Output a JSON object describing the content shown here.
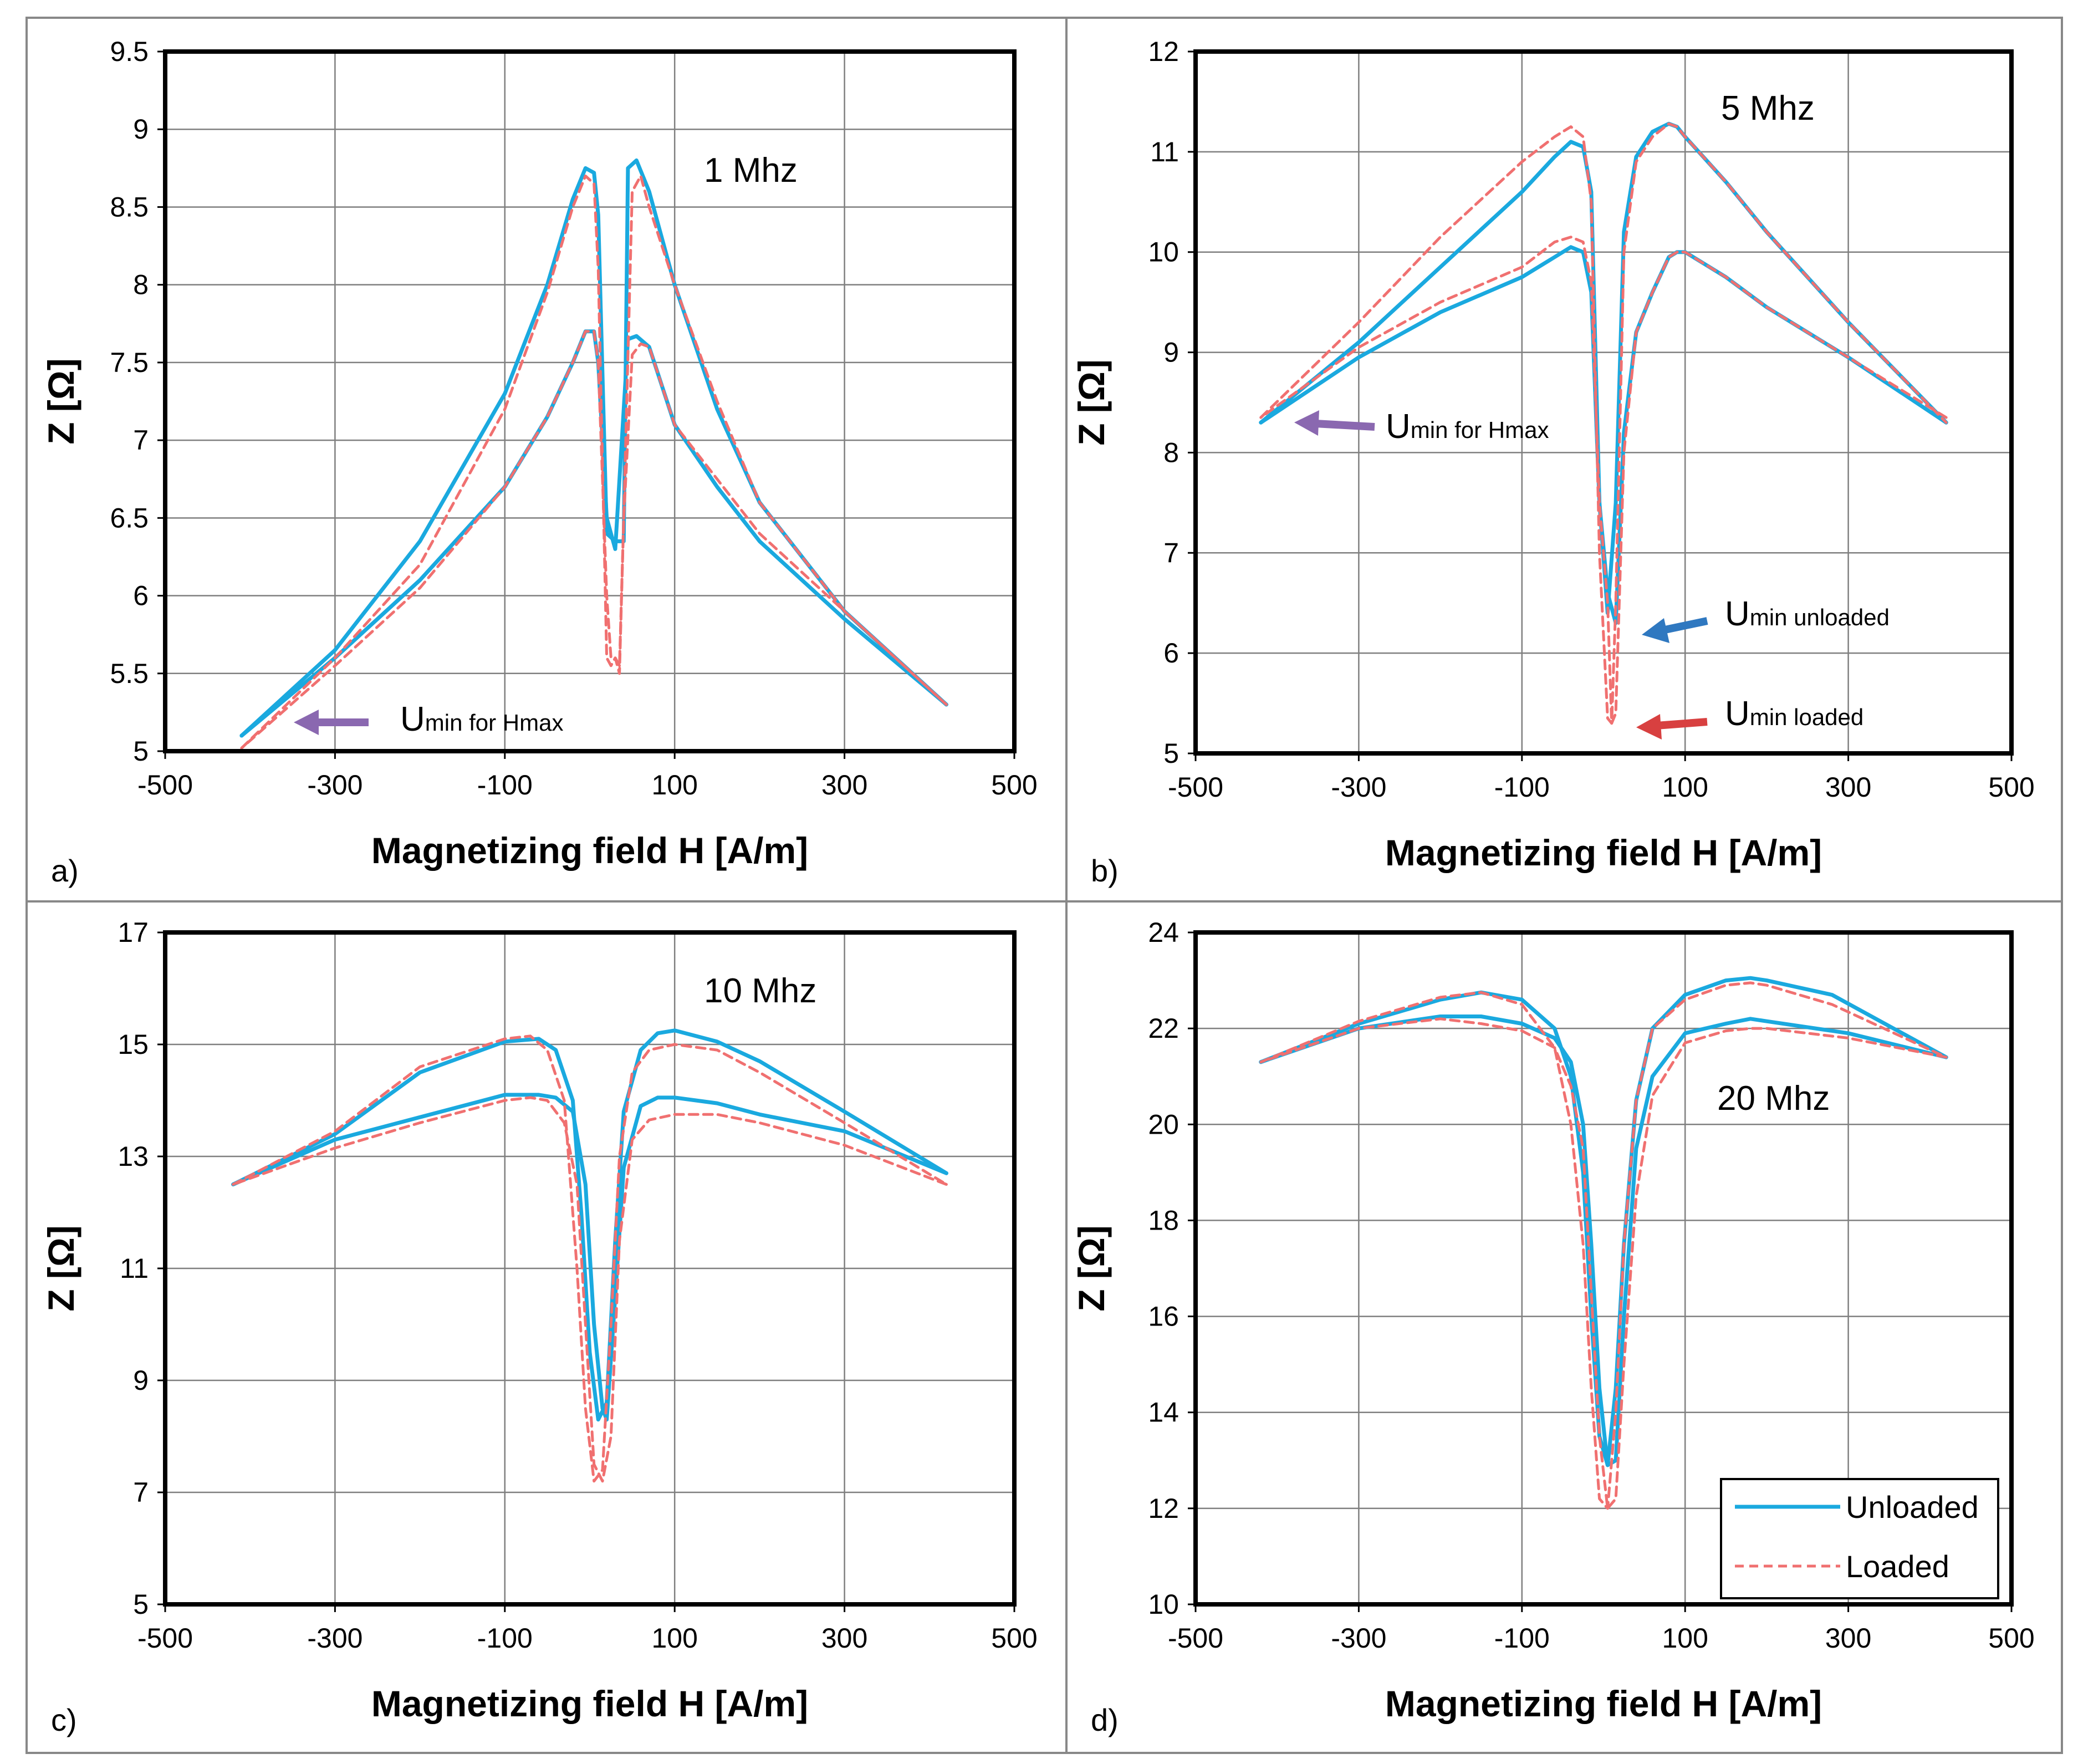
{
  "colors": {
    "unloaded": "#1aa9df",
    "loaded": "#f07070",
    "arrow_purple": "#8a68b0",
    "arrow_blue": "#2f78c0",
    "arrow_red": "#d84040",
    "grid": "#7f7f7f"
  },
  "legend": {
    "unloaded": "Unloaded",
    "loaded": "Loaded",
    "placement": "bottom-right of panel d"
  },
  "chart_data": [
    {
      "type": "line",
      "panel": "a)",
      "annotation": "1 Mhz",
      "xlabel": "Magnetizing field H [A/m]",
      "ylabel": "Z [Ω]",
      "xlim": [
        -500,
        500
      ],
      "ylim": [
        5,
        9.5
      ],
      "xticks": [
        -500,
        -300,
        -100,
        100,
        300,
        500
      ],
      "yticks": [
        5,
        5.5,
        6,
        6.5,
        7,
        7.5,
        8,
        8.5,
        9,
        9.5
      ],
      "grid": true,
      "series": [
        {
          "name": "Unloaded",
          "style": "solid",
          "x": [
            -410,
            -300,
            -200,
            -100,
            -50,
            -20,
            -5,
            5,
            10,
            20,
            30,
            40,
            45,
            55,
            70,
            100,
            150,
            200,
            300,
            420
          ],
          "y": [
            5.1,
            5.65,
            6.35,
            7.3,
            8.0,
            8.55,
            8.75,
            8.72,
            8.45,
            6.4,
            6.35,
            6.35,
            8.75,
            8.8,
            8.6,
            8.0,
            7.2,
            6.6,
            5.9,
            5.3
          ]
        },
        {
          "name": "Unloaded",
          "style": "solid",
          "x": [
            420,
            300,
            200,
            150,
            100,
            70,
            55,
            45,
            40,
            30,
            20,
            10,
            5,
            -5,
            -20,
            -50,
            -100,
            -200,
            -300,
            -410
          ],
          "y": [
            5.3,
            5.85,
            6.35,
            6.7,
            7.1,
            7.6,
            7.67,
            7.65,
            7.2,
            6.3,
            6.5,
            7.5,
            7.7,
            7.7,
            7.5,
            7.15,
            6.7,
            6.1,
            5.6,
            5.1
          ]
        },
        {
          "name": "Loaded",
          "style": "dashed",
          "x": [
            -410,
            -300,
            -200,
            -100,
            -50,
            -20,
            -5,
            5,
            10,
            20,
            25,
            30,
            35,
            40,
            50,
            60,
            70,
            100,
            150,
            200,
            300,
            420
          ],
          "y": [
            5.02,
            5.6,
            6.2,
            7.2,
            7.95,
            8.5,
            8.7,
            8.65,
            8.1,
            5.6,
            5.55,
            5.6,
            5.5,
            6.5,
            8.6,
            8.7,
            8.5,
            8.0,
            7.25,
            6.6,
            5.9,
            5.3
          ]
        },
        {
          "name": "Loaded",
          "style": "dashed",
          "x": [
            420,
            300,
            200,
            150,
            100,
            70,
            60,
            50,
            40,
            35,
            30,
            25,
            20,
            10,
            5,
            -5,
            -20,
            -50,
            -100,
            -200,
            -300,
            -410
          ],
          "y": [
            5.3,
            5.9,
            6.4,
            6.75,
            7.1,
            7.6,
            7.62,
            7.55,
            6.5,
            5.55,
            5.6,
            5.6,
            6.0,
            7.5,
            7.7,
            7.7,
            7.5,
            7.15,
            6.7,
            6.05,
            5.55,
            5.02
          ]
        }
      ],
      "annotations": [
        {
          "text_main": "U",
          "text_sub": "min for H",
          "text_main2": "",
          "text_sub2": "max"
        }
      ]
    },
    {
      "type": "line",
      "panel": "b)",
      "annotation": "5 Mhz",
      "xlabel": "Magnetizing field H [A/m]",
      "ylabel": "Z [Ω]",
      "xlim": [
        -500,
        500
      ],
      "ylim": [
        5,
        12
      ],
      "xticks": [
        -500,
        -300,
        -100,
        100,
        300,
        500
      ],
      "yticks": [
        5,
        6,
        7,
        8,
        9,
        10,
        11,
        12
      ],
      "grid": true,
      "series": [
        {
          "name": "Unloaded",
          "style": "solid",
          "x": [
            -420,
            -300,
            -200,
            -100,
            -60,
            -40,
            -25,
            -15,
            -5,
            5,
            15,
            25,
            40,
            60,
            80,
            90,
            100,
            150,
            200,
            300,
            420
          ],
          "y": [
            8.3,
            9.1,
            9.85,
            10.6,
            10.95,
            11.1,
            11.05,
            10.6,
            7.5,
            6.4,
            7.5,
            10.2,
            10.95,
            11.2,
            11.28,
            11.25,
            11.15,
            10.7,
            10.2,
            9.3,
            8.3
          ]
        },
        {
          "name": "Unloaded",
          "style": "solid",
          "x": [
            420,
            300,
            200,
            150,
            100,
            90,
            80,
            60,
            40,
            25,
            15,
            5,
            -5,
            -15,
            -25,
            -40,
            -60,
            -100,
            -200,
            -300,
            -420
          ],
          "y": [
            8.3,
            8.95,
            9.45,
            9.75,
            10.0,
            10.0,
            9.95,
            9.6,
            9.2,
            8.2,
            6.3,
            6.6,
            7.5,
            9.6,
            10.0,
            10.05,
            9.95,
            9.75,
            9.4,
            8.95,
            8.3
          ]
        },
        {
          "name": "Loaded",
          "style": "dashed",
          "x": [
            -420,
            -300,
            -200,
            -100,
            -60,
            -40,
            -25,
            -15,
            -5,
            5,
            10,
            15,
            25,
            40,
            60,
            80,
            90,
            100,
            150,
            200,
            300,
            420
          ],
          "y": [
            8.35,
            9.3,
            10.15,
            10.9,
            11.15,
            11.25,
            11.15,
            10.5,
            7.0,
            5.35,
            5.3,
            6.5,
            10.0,
            10.9,
            11.15,
            11.28,
            11.25,
            11.15,
            10.7,
            10.2,
            9.3,
            8.3
          ]
        },
        {
          "name": "Loaded",
          "style": "dashed",
          "x": [
            420,
            300,
            200,
            150,
            100,
            90,
            80,
            60,
            40,
            25,
            15,
            10,
            5,
            -5,
            -15,
            -25,
            -40,
            -60,
            -100,
            -200,
            -300,
            -420
          ],
          "y": [
            8.35,
            8.95,
            9.45,
            9.75,
            10.0,
            10.0,
            9.95,
            9.6,
            9.2,
            8.0,
            5.4,
            5.3,
            6.5,
            7.5,
            9.7,
            10.1,
            10.15,
            10.1,
            9.85,
            9.5,
            9.05,
            8.35
          ]
        }
      ],
      "annotations": [
        {
          "text_main": "U",
          "text_sub": "min for H",
          "text_sub2": "max"
        },
        {
          "text_main": "U",
          "text_sub": "min unloaded"
        },
        {
          "text_main": "U",
          "text_sub": "min loaded"
        }
      ]
    },
    {
      "type": "line",
      "panel": "c)",
      "annotation": "10 Mhz",
      "xlabel": "Magnetizing field H [A/m]",
      "ylabel": "Z [Ω]",
      "xlim": [
        -500,
        500
      ],
      "ylim": [
        5,
        17
      ],
      "xticks": [
        -500,
        -300,
        -100,
        100,
        300,
        500
      ],
      "yticks": [
        5,
        7,
        9,
        11,
        13,
        15,
        17
      ],
      "grid": true,
      "series": [
        {
          "name": "Unloaded",
          "style": "solid",
          "x": [
            -420,
            -300,
            -200,
            -100,
            -60,
            -40,
            -20,
            -10,
            0,
            10,
            20,
            30,
            40,
            60,
            80,
            100,
            150,
            200,
            300,
            420
          ],
          "y": [
            12.5,
            13.4,
            14.5,
            15.05,
            15.1,
            14.9,
            14.0,
            12.0,
            9.5,
            8.3,
            8.6,
            11.5,
            13.8,
            14.9,
            15.2,
            15.25,
            15.05,
            14.7,
            13.8,
            12.7
          ]
        },
        {
          "name": "Unloaded",
          "style": "solid",
          "x": [
            420,
            300,
            200,
            150,
            100,
            80,
            60,
            40,
            30,
            20,
            15,
            5,
            -5,
            -20,
            -40,
            -60,
            -100,
            -200,
            -300,
            -420
          ],
          "y": [
            12.7,
            13.45,
            13.75,
            13.95,
            14.05,
            14.05,
            13.9,
            12.8,
            10.5,
            8.3,
            8.5,
            10.0,
            12.5,
            13.8,
            14.05,
            14.1,
            14.1,
            13.7,
            13.3,
            12.5
          ]
        },
        {
          "name": "Loaded",
          "style": "dashed",
          "x": [
            -420,
            -300,
            -200,
            -100,
            -70,
            -50,
            -30,
            -15,
            -5,
            5,
            15,
            25,
            35,
            50,
            70,
            100,
            150,
            200,
            300,
            420
          ],
          "y": [
            12.5,
            13.45,
            14.6,
            15.1,
            15.15,
            14.9,
            14.0,
            11.0,
            8.5,
            7.2,
            7.4,
            10.0,
            13.0,
            14.5,
            14.9,
            15.0,
            14.9,
            14.5,
            13.6,
            12.5
          ]
        },
        {
          "name": "Loaded",
          "style": "dashed",
          "x": [
            420,
            300,
            200,
            150,
            100,
            70,
            50,
            35,
            25,
            15,
            5,
            -5,
            -15,
            -30,
            -50,
            -70,
            -100,
            -200,
            -300,
            -420
          ],
          "y": [
            12.5,
            13.2,
            13.6,
            13.75,
            13.75,
            13.65,
            13.3,
            11.5,
            8.0,
            7.2,
            7.5,
            10.0,
            12.5,
            13.6,
            14.0,
            14.05,
            14.0,
            13.6,
            13.15,
            12.5
          ]
        }
      ]
    },
    {
      "type": "line",
      "panel": "d)",
      "annotation": "20 Mhz",
      "xlabel": "Magnetizing field H [A/m]",
      "ylabel": "Z [Ω]",
      "xlim": [
        -500,
        500
      ],
      "ylim": [
        10,
        24
      ],
      "xticks": [
        -500,
        -300,
        -100,
        100,
        300,
        500
      ],
      "yticks": [
        10,
        12,
        14,
        16,
        18,
        20,
        22,
        24
      ],
      "grid": true,
      "series": [
        {
          "name": "Unloaded",
          "style": "solid",
          "x": [
            -420,
            -300,
            -200,
            -150,
            -100,
            -60,
            -40,
            -25,
            -15,
            -5,
            5,
            15,
            25,
            40,
            60,
            100,
            150,
            180,
            200,
            280,
            420
          ],
          "y": [
            21.3,
            22.1,
            22.6,
            22.75,
            22.6,
            22.0,
            21.0,
            19.0,
            16.0,
            13.5,
            12.9,
            14.5,
            17.5,
            20.5,
            22.0,
            22.7,
            23.0,
            23.05,
            23.0,
            22.7,
            21.4
          ]
        },
        {
          "name": "Unloaded",
          "style": "solid",
          "x": [
            420,
            300,
            200,
            180,
            150,
            100,
            60,
            40,
            25,
            15,
            5,
            -5,
            -15,
            -25,
            -40,
            -60,
            -100,
            -150,
            -200,
            -300,
            -420
          ],
          "y": [
            21.4,
            21.9,
            22.15,
            22.2,
            22.1,
            21.9,
            21.0,
            19.5,
            16.0,
            13.0,
            12.9,
            14.5,
            17.5,
            20.0,
            21.3,
            21.8,
            22.1,
            22.25,
            22.25,
            22.0,
            21.3
          ]
        },
        {
          "name": "Loaded",
          "style": "dashed",
          "x": [
            -420,
            -300,
            -200,
            -150,
            -100,
            -60,
            -40,
            -25,
            -15,
            -5,
            5,
            15,
            25,
            40,
            60,
            100,
            150,
            180,
            200,
            280,
            420
          ],
          "y": [
            21.3,
            22.15,
            22.65,
            22.75,
            22.5,
            21.6,
            20.0,
            17.5,
            14.5,
            12.2,
            12.0,
            14.0,
            17.5,
            20.5,
            22.0,
            22.6,
            22.9,
            22.95,
            22.9,
            22.5,
            21.4
          ]
        },
        {
          "name": "Loaded",
          "style": "dashed",
          "x": [
            420,
            300,
            200,
            180,
            150,
            100,
            60,
            40,
            25,
            15,
            5,
            -5,
            -15,
            -25,
            -40,
            -60,
            -100,
            -150,
            -200,
            -300,
            -420
          ],
          "y": [
            21.4,
            21.8,
            22.0,
            22.0,
            21.95,
            21.7,
            20.6,
            18.5,
            15.0,
            12.2,
            12.0,
            13.5,
            16.5,
            19.5,
            20.8,
            21.6,
            21.95,
            22.1,
            22.2,
            22.0,
            21.3
          ]
        }
      ]
    }
  ]
}
